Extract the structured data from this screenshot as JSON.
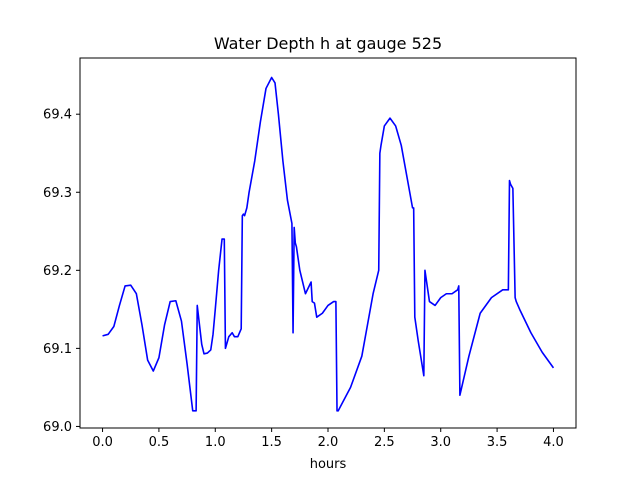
{
  "chart_data": {
    "type": "line",
    "title": "Water Depth h at gauge 525",
    "xlabel": "hours",
    "ylabel": "",
    "xlim": [
      -0.2,
      4.2
    ],
    "ylim": [
      68.998,
      69.472
    ],
    "xticks": [
      0.0,
      0.5,
      1.0,
      1.5,
      2.0,
      2.5,
      3.0,
      3.5,
      4.0
    ],
    "xtick_labels": [
      "0.0",
      "0.5",
      "1.0",
      "1.5",
      "2.0",
      "2.5",
      "3.0",
      "3.5",
      "4.0"
    ],
    "yticks": [
      69.0,
      69.1,
      69.2,
      69.3,
      69.4
    ],
    "ytick_labels": [
      "69.0",
      "69.1",
      "69.2",
      "69.3",
      "69.4"
    ],
    "grid": false,
    "legend": "none",
    "series": [
      {
        "color": "#0000ff",
        "x": [
          0.0,
          0.05,
          0.1,
          0.15,
          0.2,
          0.25,
          0.3,
          0.35,
          0.4,
          0.45,
          0.5,
          0.55,
          0.6,
          0.65,
          0.7,
          0.75,
          0.8,
          0.83,
          0.84,
          0.86,
          0.88,
          0.9,
          0.93,
          0.96,
          0.98,
          1.0,
          1.03,
          1.06,
          1.08,
          1.09,
          1.1,
          1.12,
          1.15,
          1.17,
          1.2,
          1.23,
          1.24,
          1.25,
          1.26,
          1.28,
          1.3,
          1.35,
          1.4,
          1.45,
          1.5,
          1.53,
          1.56,
          1.6,
          1.64,
          1.68,
          1.69,
          1.7,
          1.71,
          1.72,
          1.75,
          1.8,
          1.85,
          1.86,
          1.88,
          1.9,
          1.95,
          2.0,
          2.05,
          2.07,
          2.08,
          2.09,
          2.2,
          2.3,
          2.35,
          2.4,
          2.45,
          2.46,
          2.47,
          2.5,
          2.55,
          2.6,
          2.65,
          2.7,
          2.75,
          2.76,
          2.77,
          2.8,
          2.85,
          2.86,
          2.87,
          2.9,
          2.95,
          3.0,
          3.05,
          3.1,
          3.15,
          3.16,
          3.17,
          3.25,
          3.35,
          3.45,
          3.55,
          3.6,
          3.61,
          3.62,
          3.64,
          3.66,
          3.67,
          3.7,
          3.8,
          3.9,
          4.0
        ],
        "values": [
          69.116,
          69.118,
          69.128,
          69.155,
          69.18,
          69.181,
          69.17,
          69.13,
          69.085,
          69.071,
          69.088,
          69.13,
          69.16,
          69.161,
          69.135,
          69.08,
          69.02,
          69.02,
          69.155,
          69.13,
          69.105,
          69.093,
          69.094,
          69.098,
          69.118,
          69.15,
          69.2,
          69.24,
          69.24,
          69.1,
          69.105,
          69.115,
          69.12,
          69.115,
          69.115,
          69.125,
          69.27,
          69.272,
          69.27,
          69.28,
          69.3,
          69.34,
          69.39,
          69.433,
          69.447,
          69.44,
          69.4,
          69.34,
          69.29,
          69.26,
          69.12,
          69.255,
          69.235,
          69.23,
          69.2,
          69.17,
          69.185,
          69.16,
          69.158,
          69.14,
          69.145,
          69.155,
          69.16,
          69.16,
          69.02,
          69.02,
          69.05,
          69.09,
          69.13,
          69.17,
          69.2,
          69.35,
          69.36,
          69.385,
          69.395,
          69.385,
          69.36,
          69.32,
          69.28,
          69.28,
          69.14,
          69.11,
          69.065,
          69.2,
          69.19,
          69.16,
          69.155,
          69.165,
          69.17,
          69.17,
          69.175,
          69.18,
          69.04,
          69.09,
          69.145,
          69.165,
          69.175,
          69.175,
          69.315,
          69.31,
          69.305,
          69.165,
          69.16,
          69.15,
          69.12,
          69.095,
          69.075
        ]
      }
    ]
  }
}
